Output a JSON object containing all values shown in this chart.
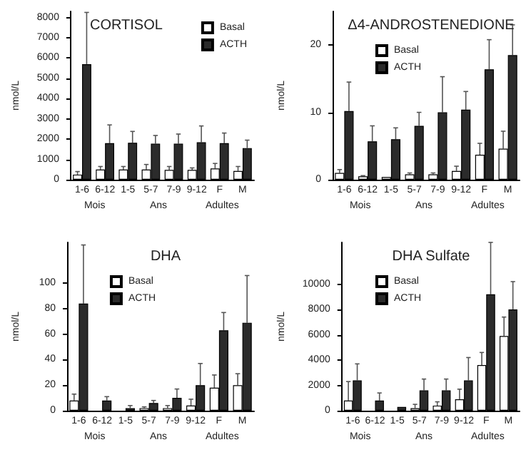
{
  "chart_data": [
    {
      "type": "bar",
      "title": "CORTISOL",
      "ylabel": "nmol/L",
      "categories": [
        "1-6",
        "6-12",
        "1-5",
        "5-7",
        "7-9",
        "9-12",
        "F",
        "M"
      ],
      "annotations": [
        "Mois",
        "Ans",
        "Adultes"
      ],
      "ylim": [
        0,
        8300
      ],
      "yticks": [
        0,
        1000,
        2000,
        3000,
        4000,
        5000,
        6000,
        7000,
        8000
      ],
      "grid": false,
      "legend": "top right",
      "series": [
        {
          "name": "Basal",
          "color": "#ffffff",
          "values": [
            250,
            500,
            500,
            500,
            480,
            480,
            550,
            430
          ],
          "errors": [
            [
              250,
              400
            ],
            [
              500,
              650
            ],
            [
              500,
              650
            ],
            [
              500,
              750
            ],
            [
              480,
              650
            ],
            [
              480,
              580
            ],
            [
              550,
              800
            ],
            [
              430,
              650
            ]
          ]
        },
        {
          "name": "ACTH",
          "color": "#2b2b2b",
          "values": [
            5700,
            1800,
            1820,
            1780,
            1780,
            1850,
            1800,
            1560
          ],
          "errors": [
            [
              5700,
              8250
            ],
            [
              1800,
              2700
            ],
            [
              1820,
              2380
            ],
            [
              1780,
              2180
            ],
            [
              1780,
              2250
            ],
            [
              1850,
              2650
            ],
            [
              1800,
              2300
            ],
            [
              1560,
              1950
            ]
          ]
        }
      ]
    },
    {
      "type": "bar",
      "title": "Δ4-ANDROSTENEDIONE",
      "ylabel": "nmol/L",
      "categories": [
        "1-6",
        "6-12",
        "1-5",
        "5-7",
        "7-9",
        "9-12",
        "F",
        "M"
      ],
      "annotations": [
        "Mois",
        "Ans",
        "Adultes"
      ],
      "ylim": [
        0,
        25
      ],
      "yticks": [
        0,
        10,
        20
      ],
      "grid": false,
      "legend": "top",
      "series": [
        {
          "name": "Basal",
          "color": "#ffffff",
          "values": [
            1.0,
            0.5,
            0.4,
            0.8,
            0.8,
            1.3,
            3.7,
            4.6
          ],
          "errors": [
            [
              1.0,
              1.5
            ],
            [
              0.5,
              0.6
            ],
            null,
            [
              0.8,
              1.0
            ],
            [
              0.8,
              1.0
            ],
            [
              1.3,
              2.0
            ],
            [
              3.7,
              5.4
            ],
            [
              4.6,
              7.2
            ]
          ]
        },
        {
          "name": "ACTH",
          "color": "#2b2b2b",
          "values": [
            10.2,
            5.7,
            6.0,
            8.0,
            10.0,
            10.4,
            16.4,
            18.5
          ],
          "errors": [
            [
              10.2,
              14.5
            ],
            [
              5.7,
              8.0
            ],
            [
              6.0,
              7.7
            ],
            [
              8.0,
              10.0
            ],
            [
              10.0,
              15.3
            ],
            [
              10.4,
              13.1
            ],
            [
              16.4,
              20.8
            ],
            [
              18.5,
              23.0
            ]
          ]
        }
      ]
    },
    {
      "type": "bar",
      "title": "DHA",
      "ylabel": "nmol/L",
      "categories": [
        "1-6",
        "6-12",
        "1-5",
        "5-7",
        "7-9",
        "9-12",
        "F",
        "M"
      ],
      "annotations": [
        "Mois",
        "Ans",
        "Adultes"
      ],
      "ylim": [
        0,
        132
      ],
      "yticks": [
        0,
        20,
        40,
        60,
        80,
        100
      ],
      "grid": false,
      "legend": "top",
      "series": [
        {
          "name": "Basal",
          "color": "#ffffff",
          "values": [
            8,
            null,
            null,
            2,
            2,
            4,
            18,
            20
          ],
          "errors": [
            [
              8,
              13
            ],
            null,
            null,
            [
              2,
              3
            ],
            [
              2,
              4
            ],
            [
              4,
              9
            ],
            [
              18,
              28
            ],
            [
              20,
              29
            ]
          ]
        },
        {
          "name": "ACTH",
          "color": "#2b2b2b",
          "values": [
            84,
            8,
            2,
            6,
            10,
            20,
            63,
            69
          ],
          "errors": [
            [
              84,
              130
            ],
            [
              8,
              11
            ],
            [
              2,
              4
            ],
            [
              6,
              8
            ],
            [
              10,
              17
            ],
            [
              20,
              37
            ],
            [
              63,
              77
            ],
            [
              69,
              106
            ]
          ]
        }
      ]
    },
    {
      "type": "bar",
      "title": "DHA Sulfate",
      "ylabel": "nmol/L",
      "categories": [
        "1-6",
        "6-12",
        "1-5",
        "5-7",
        "7-9",
        "9-12",
        "F",
        "M"
      ],
      "annotations": [
        "Mois",
        "Ans",
        "Adultes"
      ],
      "ylim": [
        0,
        13300
      ],
      "yticks": [
        0,
        2000,
        4000,
        6000,
        8000,
        10000
      ],
      "grid": false,
      "legend": "top",
      "series": [
        {
          "name": "Basal",
          "color": "#ffffff",
          "values": [
            800,
            null,
            null,
            200,
            400,
            900,
            3600,
            5900
          ],
          "errors": [
            [
              800,
              2300
            ],
            null,
            null,
            [
              200,
              500
            ],
            [
              400,
              700
            ],
            [
              900,
              1700
            ],
            [
              3600,
              4600
            ],
            [
              5900,
              7400
            ]
          ]
        },
        {
          "name": "ACTH",
          "color": "#2b2b2b",
          "values": [
            2400,
            800,
            300,
            1600,
            1600,
            2400,
            9200,
            8000
          ],
          "errors": [
            [
              2400,
              3700
            ],
            [
              800,
              1400
            ],
            null,
            [
              1600,
              2500
            ],
            [
              1600,
              2500
            ],
            [
              2400,
              4200
            ],
            [
              9200,
              13300
            ],
            [
              8000,
              10200
            ]
          ]
        }
      ]
    }
  ]
}
